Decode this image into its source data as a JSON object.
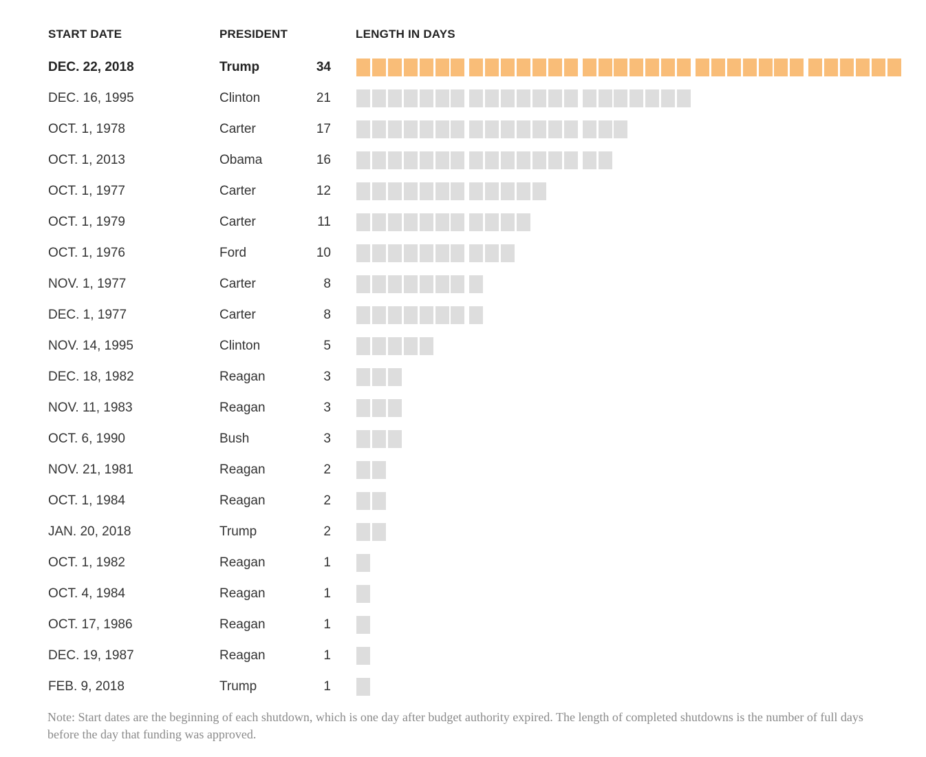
{
  "headers": {
    "start_date": "START DATE",
    "president": "PRESIDENT",
    "length": "LENGTH IN DAYS"
  },
  "chart_data": {
    "type": "table",
    "columns": [
      "START DATE",
      "PRESIDENT",
      "LENGTH IN DAYS"
    ],
    "rows": [
      {
        "date": "DEC. 22, 2018",
        "president": "Trump",
        "days": 34,
        "highlight": true
      },
      {
        "date": "DEC. 16, 1995",
        "president": "Clinton",
        "days": 21
      },
      {
        "date": "OCT. 1, 1978",
        "president": "Carter",
        "days": 17
      },
      {
        "date": "OCT. 1, 2013",
        "president": "Obama",
        "days": 16
      },
      {
        "date": "OCT. 1, 1977",
        "president": "Carter",
        "days": 12
      },
      {
        "date": "OCT. 1, 1979",
        "president": "Carter",
        "days": 11
      },
      {
        "date": "OCT. 1, 1976",
        "president": "Ford",
        "days": 10
      },
      {
        "date": "NOV. 1, 1977",
        "president": "Carter",
        "days": 8
      },
      {
        "date": "DEC. 1, 1977",
        "president": "Carter",
        "days": 8
      },
      {
        "date": "NOV. 14, 1995",
        "president": "Clinton",
        "days": 5
      },
      {
        "date": "DEC. 18, 1982",
        "president": "Reagan",
        "days": 3
      },
      {
        "date": "NOV. 11, 1983",
        "president": "Reagan",
        "days": 3
      },
      {
        "date": "OCT. 6, 1990",
        "president": "Bush",
        "days": 3
      },
      {
        "date": "NOV. 21, 1981",
        "president": "Reagan",
        "days": 2
      },
      {
        "date": "OCT. 1, 1984",
        "president": "Reagan",
        "days": 2
      },
      {
        "date": "JAN. 20, 2018",
        "president": "Trump",
        "days": 2
      },
      {
        "date": "OCT. 1, 1982",
        "president": "Reagan",
        "days": 1
      },
      {
        "date": "OCT. 4, 1984",
        "president": "Reagan",
        "days": 1
      },
      {
        "date": "OCT. 17, 1986",
        "president": "Reagan",
        "days": 1
      },
      {
        "date": "DEC. 19, 1987",
        "president": "Reagan",
        "days": 1
      },
      {
        "date": "FEB. 9, 2018",
        "president": "Trump",
        "days": 1
      }
    ],
    "colors": {
      "highlight": "#f9bd78",
      "default": "#dddddd"
    }
  },
  "note": "Note: Start dates are the beginning of each shutdown, which is one day after budget authority expired. The length of completed shutdowns is the number of full days before the day that funding was approved."
}
